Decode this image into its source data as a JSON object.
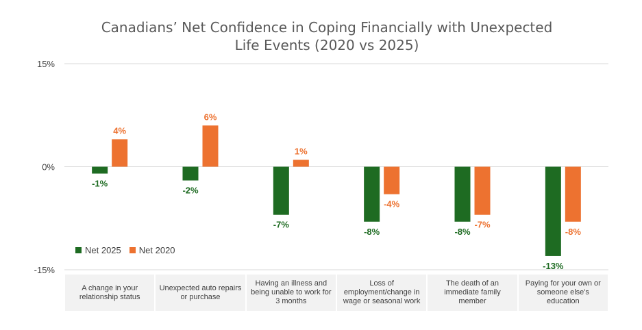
{
  "chart_data": {
    "type": "bar",
    "title_lines": [
      "Canadians’ Net Confidence in Coping Financially with Unexpected",
      "Life Events (2020 vs 2025)"
    ],
    "categories": [
      "A change in your relationship status",
      "Unexpected auto repairs or purchase",
      "Having an illness and being unable to work for 3 months",
      "Loss of employment/change in wage or seasonal work",
      "The death of an immediate family member",
      "Paying for your own or someone else's education"
    ],
    "series": [
      {
        "name": "Net 2025",
        "color": "#1e6b22",
        "values": [
          -1,
          -2,
          -7,
          -8,
          -8,
          -13
        ],
        "labels": [
          "-1%",
          "-2%",
          "-7%",
          "-8%",
          "-8%",
          "-13%"
        ]
      },
      {
        "name": "Net 2020",
        "color": "#ed7230",
        "values": [
          4,
          6,
          1,
          -4,
          -7,
          -8
        ],
        "labels": [
          "4%",
          "6%",
          "1%",
          "-4%",
          "-7%",
          "-8%"
        ]
      }
    ],
    "yticks": [
      15,
      0,
      -15
    ],
    "ytick_labels": [
      "15%",
      "0%",
      "-15%"
    ],
    "ylim": [
      -15,
      15
    ],
    "xlabel": "",
    "ylabel": "",
    "legend_position": "bottom-left"
  }
}
